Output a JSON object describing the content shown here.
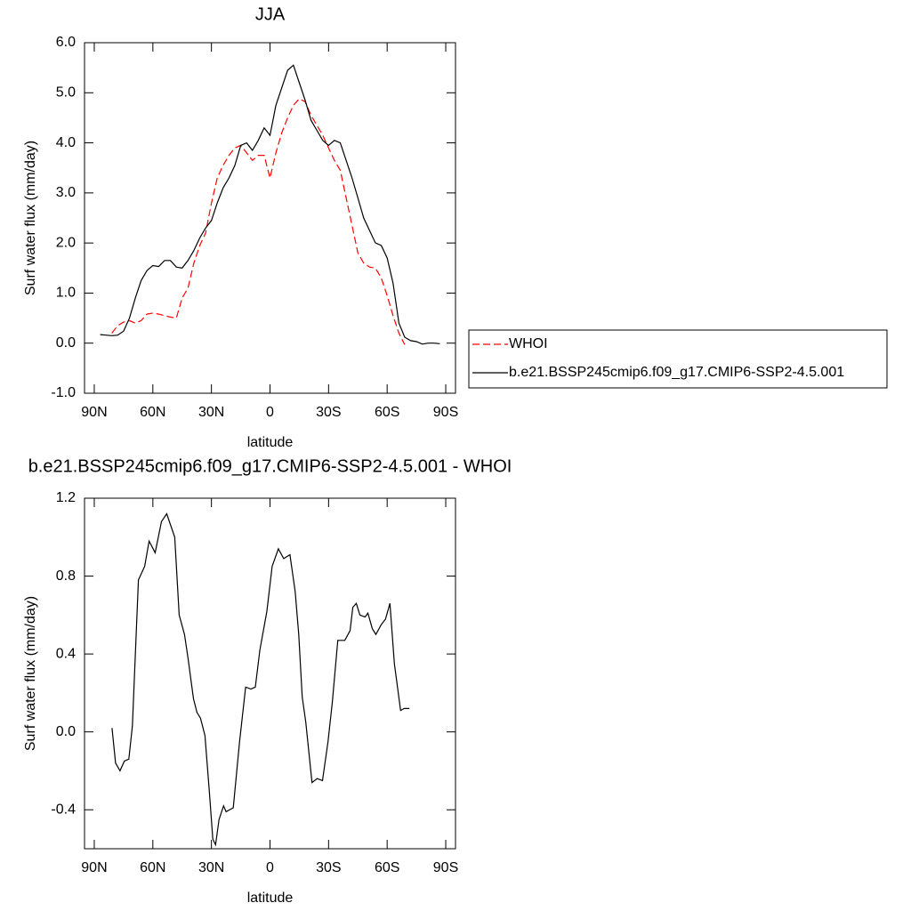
{
  "chart_data": [
    {
      "type": "line",
      "title": "JJA",
      "xlabel": "latitude",
      "ylabel": "Surf water flux (mm/day)",
      "x": [
        87,
        84,
        81,
        78,
        75,
        72,
        69,
        66,
        63,
        60,
        57,
        54,
        51,
        48,
        45,
        42,
        39,
        36,
        33,
        30,
        27,
        24,
        21,
        18,
        15,
        12,
        9,
        6,
        3,
        0,
        -3,
        -6,
        -9,
        -12,
        -15,
        -18,
        -21,
        -24,
        -27,
        -30,
        -33,
        -36,
        -39,
        -42,
        -45,
        -48,
        -51,
        -54,
        -57,
        -60,
        -63,
        -66,
        -69,
        -72,
        -75,
        -78,
        -81,
        -84,
        -87
      ],
      "series": [
        {
          "name": "WHOI",
          "color": "#ff0000",
          "line_style": "dashed",
          "values": [
            null,
            null,
            0.2,
            0.35,
            0.42,
            0.45,
            0.4,
            0.45,
            0.58,
            0.6,
            0.58,
            0.55,
            0.52,
            0.5,
            0.9,
            1.1,
            1.6,
            1.95,
            2.2,
            2.8,
            3.3,
            3.55,
            3.75,
            3.9,
            3.95,
            3.8,
            3.65,
            3.75,
            3.75,
            3.3,
            3.8,
            4.2,
            4.5,
            4.75,
            4.88,
            4.82,
            4.55,
            4.35,
            4.15,
            3.9,
            3.65,
            3.45,
            2.9,
            2.35,
            1.8,
            1.6,
            1.52,
            1.5,
            1.3,
            0.95,
            0.55,
            0.2,
            -0.03,
            null,
            null,
            null,
            null,
            null,
            null
          ]
        },
        {
          "name": "b.e21.BSSP245cmip6.f09_g17.CMIP6-SSP2-4.5.001",
          "color": "#000000",
          "line_style": "solid",
          "values": [
            0.17,
            0.16,
            0.15,
            0.16,
            0.24,
            0.5,
            0.9,
            1.25,
            1.45,
            1.55,
            1.53,
            1.65,
            1.65,
            1.52,
            1.5,
            1.65,
            1.85,
            2.1,
            2.3,
            2.45,
            2.8,
            3.1,
            3.3,
            3.55,
            3.95,
            4.0,
            3.85,
            4.05,
            4.3,
            4.15,
            4.75,
            5.1,
            5.45,
            5.55,
            5.2,
            4.85,
            4.45,
            4.25,
            4.05,
            3.95,
            4.05,
            4.0,
            3.65,
            3.3,
            2.9,
            2.5,
            2.25,
            2.0,
            1.95,
            1.7,
            1.2,
            0.4,
            0.12,
            0.05,
            0.03,
            -0.02,
            0.0,
            0.0,
            -0.01
          ]
        }
      ],
      "xlim": [
        95,
        -95
      ],
      "xticks": [
        {
          "value": 90,
          "label": "90N"
        },
        {
          "value": 60,
          "label": "60N"
        },
        {
          "value": 30,
          "label": "30N"
        },
        0,
        {
          "value": -30,
          "label": "30S"
        },
        {
          "value": -60,
          "label": "60S"
        },
        {
          "value": -90,
          "label": "90S"
        }
      ],
      "ylim": [
        -1,
        6
      ],
      "yticks": [
        {
          "value": -1,
          "label": "-1.0"
        },
        {
          "value": 0,
          "label": "0.0"
        },
        {
          "value": 1,
          "label": "1.0"
        },
        {
          "value": 2,
          "label": "2.0"
        },
        {
          "value": 3,
          "label": "3.0"
        },
        {
          "value": 4,
          "label": "4.0"
        },
        {
          "value": 5,
          "label": "5.0"
        },
        {
          "value": 6,
          "label": "6.0"
        }
      ],
      "legend": "right"
    },
    {
      "type": "line",
      "title": "b.e21.BSSP245cmip6.f09_g17.CMIP6-SSP2-4.5.001 - WHOI",
      "xlabel": "latitude",
      "ylabel": "Surf water flux (mm/day)",
      "x": [
        80.9,
        79.1,
        76.8,
        74.6,
        72.3,
        70.5,
        67.4,
        64.2,
        61.9,
        58.8,
        55.6,
        52.9,
        48.8,
        46.5,
        43.8,
        42.0,
        39.2,
        37.4,
        35.6,
        33.3,
        31.1,
        29.3,
        27.9,
        26.1,
        23.8,
        22.5,
        18.8,
        15.6,
        12.5,
        9.8,
        7.5,
        5.2,
        1.6,
        -1.1,
        -4.3,
        -7.0,
        -10.2,
        -12.9,
        -14.7,
        -16.5,
        -18.3,
        -21.5,
        -24.2,
        -26.9,
        -29.7,
        -31.9,
        -34.7,
        -38.3,
        -41.0,
        -42.4,
        -44.2,
        -46.0,
        -48.7,
        -50.1,
        -52.4,
        -54.2,
        -56.9,
        -59.2,
        -61.4,
        -63.7,
        -66.9,
        -68.7,
        -71.4
      ],
      "series": [
        {
          "color": "#000000",
          "line_style": "solid",
          "values": [
            0.02,
            -0.16,
            -0.2,
            -0.15,
            -0.14,
            0.03,
            0.78,
            0.85,
            0.98,
            0.92,
            1.08,
            1.12,
            1.0,
            0.6,
            0.5,
            0.38,
            0.17,
            0.1,
            0.07,
            -0.02,
            -0.3,
            -0.55,
            -0.58,
            -0.45,
            -0.38,
            -0.41,
            -0.39,
            -0.05,
            0.23,
            0.22,
            0.23,
            0.42,
            0.62,
            0.85,
            0.94,
            0.89,
            0.91,
            0.72,
            0.5,
            0.18,
            0.05,
            -0.26,
            -0.24,
            -0.25,
            -0.05,
            0.15,
            0.47,
            0.47,
            0.52,
            0.64,
            0.66,
            0.6,
            0.59,
            0.61,
            0.53,
            0.5,
            0.55,
            0.58,
            0.66,
            0.35,
            0.11,
            0.12,
            0.12
          ]
        }
      ],
      "xlim": [
        95,
        -95
      ],
      "xticks": [
        {
          "value": 90,
          "label": "90N"
        },
        {
          "value": 60,
          "label": "60N"
        },
        {
          "value": 30,
          "label": "30N"
        },
        0,
        {
          "value": -30,
          "label": "30S"
        },
        {
          "value": -60,
          "label": "60S"
        },
        {
          "value": -90,
          "label": "90S"
        }
      ],
      "ylim": [
        -0.6,
        1.2
      ],
      "yticks": [
        {
          "value": -0.4,
          "label": "-0.4"
        },
        {
          "value": 0,
          "label": "0.0"
        },
        {
          "value": 0.4,
          "label": "0.4"
        },
        {
          "value": 0.8,
          "label": "0.8"
        },
        {
          "value": 1.2,
          "label": "1.2"
        }
      ]
    }
  ]
}
